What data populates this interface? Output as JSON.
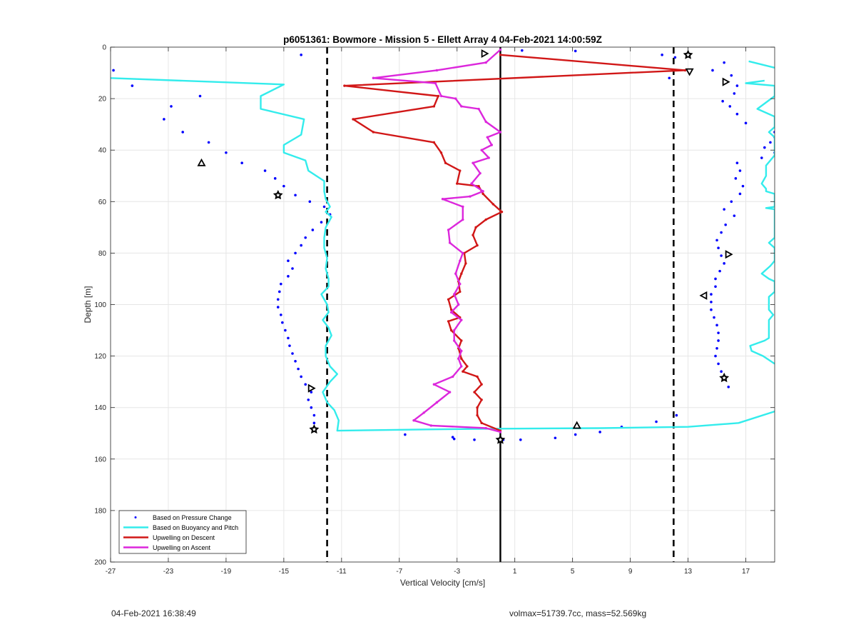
{
  "chart_data": {
    "type": "line",
    "title": "p6051361: Bowmore - Mission 5 - Ellett Array 4 04-Feb-2021 14:00:59Z",
    "xlabel": "Vertical Velocity [cm/s]",
    "ylabel": "Depth [m]",
    "xlim": [
      -27,
      19
    ],
    "ylim": [
      0,
      200
    ],
    "y_reversed": true,
    "xticks": [
      -27,
      -23,
      -19,
      -15,
      -11,
      -7,
      -3,
      1,
      5,
      9,
      13,
      17
    ],
    "yticks": [
      0,
      20,
      40,
      60,
      80,
      100,
      120,
      140,
      160,
      180,
      200
    ],
    "grid": true,
    "legend_position": "bottom-left",
    "legend": [
      "Based on Pressure Change",
      "Based on Buoyancy and Pitch",
      "Upwelling on Descent",
      "Upwelling on Ascent"
    ],
    "reference_lines": [
      {
        "x": 0,
        "style": "solid",
        "color": "#000000"
      },
      {
        "x": -12,
        "style": "dashed",
        "color": "#000000"
      },
      {
        "x": 12,
        "style": "dashed",
        "color": "#000000"
      }
    ],
    "series": [
      {
        "name": "Based on Pressure Change",
        "style": "points",
        "color": "#0000ff",
        "points": [
          [
            -13.8,
            3
          ],
          [
            -26.8,
            9
          ],
          [
            -25.5,
            15
          ],
          [
            -20.8,
            19
          ],
          [
            -22.8,
            23
          ],
          [
            -23.3,
            28
          ],
          [
            -22,
            33
          ],
          [
            -20.2,
            37
          ],
          [
            -19,
            41
          ],
          [
            -17.9,
            45
          ],
          [
            -16.3,
            48
          ],
          [
            -15.6,
            51
          ],
          [
            -15,
            54
          ],
          [
            -14.2,
            57.5
          ],
          [
            -13.2,
            60
          ],
          [
            -12.2,
            62
          ],
          [
            -11.8,
            65
          ],
          [
            -12.4,
            68
          ],
          [
            -13,
            71
          ],
          [
            -13.5,
            74
          ],
          [
            -13.8,
            77
          ],
          [
            -14.2,
            80
          ],
          [
            -14.7,
            83
          ],
          [
            -14.4,
            86
          ],
          [
            -14.7,
            89
          ],
          [
            -15.2,
            92
          ],
          [
            -15.3,
            95
          ],
          [
            -15.4,
            98
          ],
          [
            -15.4,
            101
          ],
          [
            -15.2,
            104
          ],
          [
            -15.1,
            107
          ],
          [
            -14.9,
            110
          ],
          [
            -14.7,
            113
          ],
          [
            -14.6,
            116
          ],
          [
            -14.4,
            119
          ],
          [
            -14.2,
            122
          ],
          [
            -14,
            125
          ],
          [
            -13.8,
            128
          ],
          [
            -13.5,
            131
          ],
          [
            -13.1,
            134
          ],
          [
            -13.3,
            137
          ],
          [
            -13.1,
            140
          ],
          [
            -12.9,
            143
          ],
          [
            -12.9,
            146
          ],
          [
            -12.9,
            149
          ],
          [
            -6.6,
            150.5
          ],
          [
            -3.3,
            151.5
          ],
          [
            -3.2,
            152.2
          ],
          [
            -1.8,
            152.5
          ],
          [
            0.2,
            152.5
          ],
          [
            1.4,
            152.5
          ],
          [
            3.8,
            151.8
          ],
          [
            5.2,
            150.5
          ],
          [
            6.9,
            149.5
          ],
          [
            8.4,
            147.5
          ],
          [
            10.8,
            145.5
          ],
          [
            12.2,
            143
          ],
          [
            15.8,
            132
          ],
          [
            15.5,
            129
          ],
          [
            15.3,
            126
          ],
          [
            15.1,
            123
          ],
          [
            14.9,
            120
          ],
          [
            15,
            117
          ],
          [
            15.1,
            114
          ],
          [
            15.1,
            111
          ],
          [
            15,
            108
          ],
          [
            14.8,
            105
          ],
          [
            14.6,
            102
          ],
          [
            14.6,
            99
          ],
          [
            14.6,
            96
          ],
          [
            14.9,
            93
          ],
          [
            14.9,
            90
          ],
          [
            15.2,
            87
          ],
          [
            15.5,
            84
          ],
          [
            15.3,
            81
          ],
          [
            15.1,
            78
          ],
          [
            15,
            75
          ],
          [
            15.3,
            72
          ],
          [
            15.6,
            69
          ],
          [
            16.2,
            65.5
          ],
          [
            15.5,
            63
          ],
          [
            16,
            60
          ],
          [
            16.6,
            57
          ],
          [
            16.8,
            54
          ],
          [
            16.3,
            51
          ],
          [
            16.6,
            48
          ],
          [
            16.4,
            45
          ],
          [
            18.1,
            43
          ],
          [
            19,
            41
          ],
          [
            18.3,
            39
          ],
          [
            18.7,
            37
          ],
          [
            19,
            35
          ],
          [
            19,
            33
          ],
          [
            17,
            29.5
          ],
          [
            16.4,
            26
          ],
          [
            15.9,
            23
          ],
          [
            15.4,
            21
          ],
          [
            16.2,
            18
          ],
          [
            16.4,
            15
          ],
          [
            16,
            11
          ],
          [
            14.7,
            9
          ],
          [
            15.5,
            6
          ],
          [
            5.2,
            1.5
          ],
          [
            1.5,
            1.3
          ],
          [
            11.2,
            3
          ],
          [
            12.1,
            4
          ],
          [
            11.7,
            12
          ]
        ]
      },
      {
        "name": "Based on Buoyancy and Pitch",
        "style": "line",
        "color": "#33ecec",
        "points": [
          [
            -28,
            11
          ],
          [
            -27,
            12
          ],
          [
            -15,
            14.5
          ],
          [
            -16.6,
            19
          ],
          [
            -16.6,
            24
          ],
          [
            -13.6,
            28
          ],
          [
            -13.8,
            34
          ],
          [
            -15,
            38
          ],
          [
            -15,
            41
          ],
          [
            -13.5,
            44
          ],
          [
            -13.3,
            48
          ],
          [
            -12.2,
            52
          ],
          [
            -12.2,
            56
          ],
          [
            -12.1,
            59
          ],
          [
            -11.8,
            62
          ],
          [
            -12.1,
            64
          ],
          [
            -11.7,
            66
          ],
          [
            -12.1,
            70
          ],
          [
            -12.2,
            74
          ],
          [
            -12.2,
            78
          ],
          [
            -12,
            82
          ],
          [
            -12.1,
            86
          ],
          [
            -11.9,
            90
          ],
          [
            -11.9,
            93
          ],
          [
            -12.4,
            96
          ],
          [
            -12,
            100
          ],
          [
            -11.9,
            103
          ],
          [
            -12.3,
            106
          ],
          [
            -11.9,
            109
          ],
          [
            -11.7,
            112
          ],
          [
            -12.1,
            116
          ],
          [
            -12.1,
            120
          ],
          [
            -11.8,
            124
          ],
          [
            -11.3,
            127
          ],
          [
            -11.8,
            130
          ],
          [
            -12.3,
            134
          ],
          [
            -12,
            138
          ],
          [
            -11.5,
            141
          ],
          [
            -11.2,
            145
          ],
          [
            -11.3,
            149
          ],
          [
            -5,
            148.5
          ],
          [
            0,
            148.2
          ],
          [
            7,
            148
          ],
          [
            13,
            147.5
          ],
          [
            16.5,
            146
          ],
          [
            19,
            141.5
          ]
        ]
      },
      {
        "name": "Based on Buoyancy and Pitch (upper right)",
        "style": "line",
        "color": "#33ecec",
        "points": [
          [
            17.2,
            5.5
          ],
          [
            19,
            8
          ]
        ]
      },
      {
        "name": "Based on Buoyancy and Pitch (right edge)",
        "style": "line",
        "color": "#33ecec",
        "points": [
          [
            18.3,
            13
          ],
          [
            17,
            14
          ],
          [
            19,
            15
          ],
          [
            19,
            19
          ],
          [
            17.8,
            24
          ],
          [
            19,
            27
          ],
          [
            19,
            31
          ],
          [
            18.6,
            33
          ],
          [
            19,
            35
          ],
          [
            19,
            42
          ],
          [
            18.4,
            46
          ],
          [
            18.4,
            50
          ],
          [
            18.1,
            53
          ],
          [
            18.4,
            55
          ],
          [
            18.4,
            56
          ],
          [
            19,
            57
          ],
          [
            19,
            62
          ],
          [
            18.4,
            62.5
          ],
          [
            19,
            63
          ],
          [
            19,
            74
          ],
          [
            18.6,
            76
          ],
          [
            19,
            78
          ],
          [
            19,
            83
          ],
          [
            18.7,
            85
          ],
          [
            18.1,
            88
          ],
          [
            18.6,
            90
          ],
          [
            19,
            91
          ],
          [
            19,
            95
          ],
          [
            18.6,
            97
          ],
          [
            18.6,
            102
          ],
          [
            18.9,
            104
          ],
          [
            18.6,
            106
          ],
          [
            18.6,
            110
          ],
          [
            18.6,
            113
          ],
          [
            18.3,
            114
          ],
          [
            17.3,
            116
          ],
          [
            17.4,
            118
          ],
          [
            18.2,
            120
          ],
          [
            19,
            123
          ]
        ]
      },
      {
        "name": "Upwelling on Descent",
        "style": "line",
        "color": "#d11717",
        "points": [
          [
            0,
            3
          ],
          [
            12.8,
            9
          ],
          [
            -10.8,
            15
          ],
          [
            -4.3,
            19
          ],
          [
            -4.6,
            23
          ],
          [
            -10.2,
            28
          ],
          [
            -8.8,
            33
          ],
          [
            -4.6,
            37
          ],
          [
            -4.1,
            41
          ],
          [
            -3.8,
            45
          ],
          [
            -2.8,
            48
          ],
          [
            -3,
            53
          ],
          [
            -1.5,
            54
          ],
          [
            -1.2,
            57
          ],
          [
            -0.5,
            61
          ],
          [
            0.1,
            64
          ],
          [
            -1,
            67
          ],
          [
            -1.7,
            70
          ],
          [
            -1.9,
            73
          ],
          [
            -1.6,
            77
          ],
          [
            -2.5,
            80
          ],
          [
            -2.4,
            84
          ],
          [
            -2.7,
            88
          ],
          [
            -2.9,
            91
          ],
          [
            -2.8,
            95
          ],
          [
            -3.6,
            98
          ],
          [
            -3.4,
            102
          ],
          [
            -2.8,
            105
          ],
          [
            -3.6,
            106.5
          ],
          [
            -3.4,
            110
          ],
          [
            -2.7,
            114
          ],
          [
            -2.9,
            117
          ],
          [
            -2.7,
            121
          ],
          [
            -2.3,
            124
          ],
          [
            -2.6,
            126
          ],
          [
            -1.6,
            128
          ],
          [
            -1.3,
            131
          ],
          [
            -1.8,
            134
          ],
          [
            -1.3,
            137
          ],
          [
            -1.6,
            140
          ],
          [
            -1.6,
            143
          ],
          [
            -1.3,
            146
          ],
          [
            0,
            149
          ]
        ]
      },
      {
        "name": "Upwelling on Ascent",
        "style": "line",
        "color": "#dc27dc",
        "points": [
          [
            0,
            1
          ],
          [
            -1,
            6
          ],
          [
            -4.4,
            9
          ],
          [
            -8.8,
            12
          ],
          [
            -4.5,
            14
          ],
          [
            -4.1,
            19
          ],
          [
            -3.1,
            20
          ],
          [
            -2.7,
            23
          ],
          [
            -1.5,
            24
          ],
          [
            -1,
            29
          ],
          [
            0,
            33
          ],
          [
            -0.9,
            35
          ],
          [
            -0.6,
            38
          ],
          [
            -1.3,
            40
          ],
          [
            -0.8,
            43
          ],
          [
            -1.9,
            45
          ],
          [
            -1.4,
            49
          ],
          [
            -2,
            53
          ],
          [
            -1.2,
            56
          ],
          [
            -2.1,
            58
          ],
          [
            -4,
            59
          ],
          [
            -2.6,
            62
          ],
          [
            -2.6,
            67
          ],
          [
            -3.6,
            71
          ],
          [
            -3.5,
            76
          ],
          [
            -2.6,
            80
          ],
          [
            -2.8,
            83
          ],
          [
            -3.1,
            88
          ],
          [
            -2.8,
            92
          ],
          [
            -3.2,
            96
          ],
          [
            -2.9,
            100
          ],
          [
            -3.4,
            103
          ],
          [
            -2.7,
            106
          ],
          [
            -3.2,
            110
          ],
          [
            -3.2,
            114
          ],
          [
            -2.7,
            118
          ],
          [
            -2.9,
            121
          ],
          [
            -2.7,
            124
          ],
          [
            -3.3,
            128
          ],
          [
            -4.6,
            131
          ],
          [
            -3.5,
            134
          ],
          [
            -4.4,
            138
          ],
          [
            -5.3,
            142
          ],
          [
            -6,
            145
          ],
          [
            -4.8,
            147
          ],
          [
            -1,
            148
          ],
          [
            0,
            149.5
          ]
        ]
      }
    ],
    "markers": [
      {
        "x": -1.1,
        "y": 2.5,
        "shape": "triangle-right"
      },
      {
        "x": 13,
        "y": 3,
        "shape": "star"
      },
      {
        "x": 13.1,
        "y": 9.5,
        "shape": "triangle-down"
      },
      {
        "x": 15.6,
        "y": 13.5,
        "shape": "triangle-right"
      },
      {
        "x": -20.7,
        "y": 45,
        "shape": "triangle-up"
      },
      {
        "x": -15.4,
        "y": 57.5,
        "shape": "star"
      },
      {
        "x": 15.8,
        "y": 80.5,
        "shape": "triangle-right"
      },
      {
        "x": 14.1,
        "y": 96.5,
        "shape": "triangle-left"
      },
      {
        "x": 15.5,
        "y": 128.5,
        "shape": "star"
      },
      {
        "x": -13.1,
        "y": 132.5,
        "shape": "triangle-right"
      },
      {
        "x": 5.3,
        "y": 147,
        "shape": "triangle-up"
      },
      {
        "x": -12.9,
        "y": 148.5,
        "shape": "star"
      },
      {
        "x": 0,
        "y": 152.5,
        "shape": "star"
      }
    ]
  },
  "footer": {
    "timestamp": "04-Feb-2021 16:38:49",
    "stats": "volmax=51739.7cc, mass=52.569kg"
  }
}
